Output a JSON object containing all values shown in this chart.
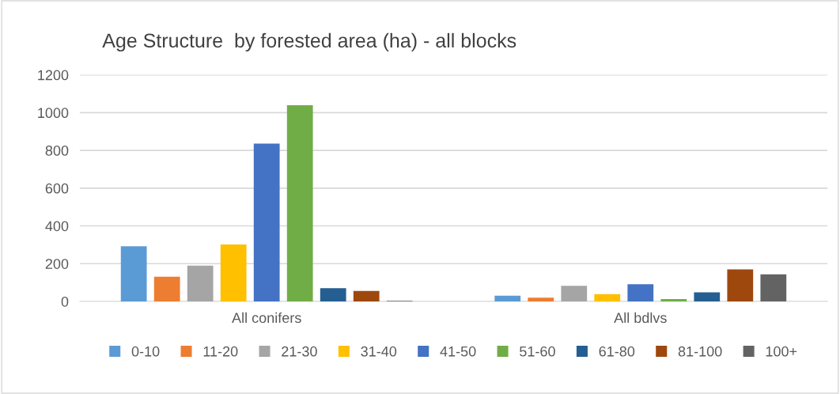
{
  "chart_data": {
    "type": "bar",
    "title": "Age Structure  by forested area (ha) - all blocks",
    "categories": [
      "All conifers",
      "All bdlvs"
    ],
    "series": [
      {
        "name": "0-10",
        "color": "#5b9bd5",
        "values": [
          292,
          30
        ]
      },
      {
        "name": "11-20",
        "color": "#ed7d31",
        "values": [
          131,
          20
        ]
      },
      {
        "name": "21-30",
        "color": "#a5a5a5",
        "values": [
          190,
          83
        ]
      },
      {
        "name": "31-40",
        "color": "#ffc000",
        "values": [
          302,
          39
        ]
      },
      {
        "name": "41-50",
        "color": "#4472c4",
        "values": [
          836,
          91
        ]
      },
      {
        "name": "51-60",
        "color": "#70ad47",
        "values": [
          1039,
          12
        ]
      },
      {
        "name": "61-80",
        "color": "#255e91",
        "values": [
          70,
          48
        ]
      },
      {
        "name": "81-100",
        "color": "#9e480e",
        "values": [
          55,
          170
        ]
      },
      {
        "name": "100+",
        "color": "#636363",
        "values": [
          3,
          143
        ]
      }
    ],
    "ylim": [
      0,
      1200
    ],
    "yticks": [
      0,
      200,
      400,
      600,
      800,
      1000,
      1200
    ],
    "grid": "y",
    "legend": "bottom"
  }
}
